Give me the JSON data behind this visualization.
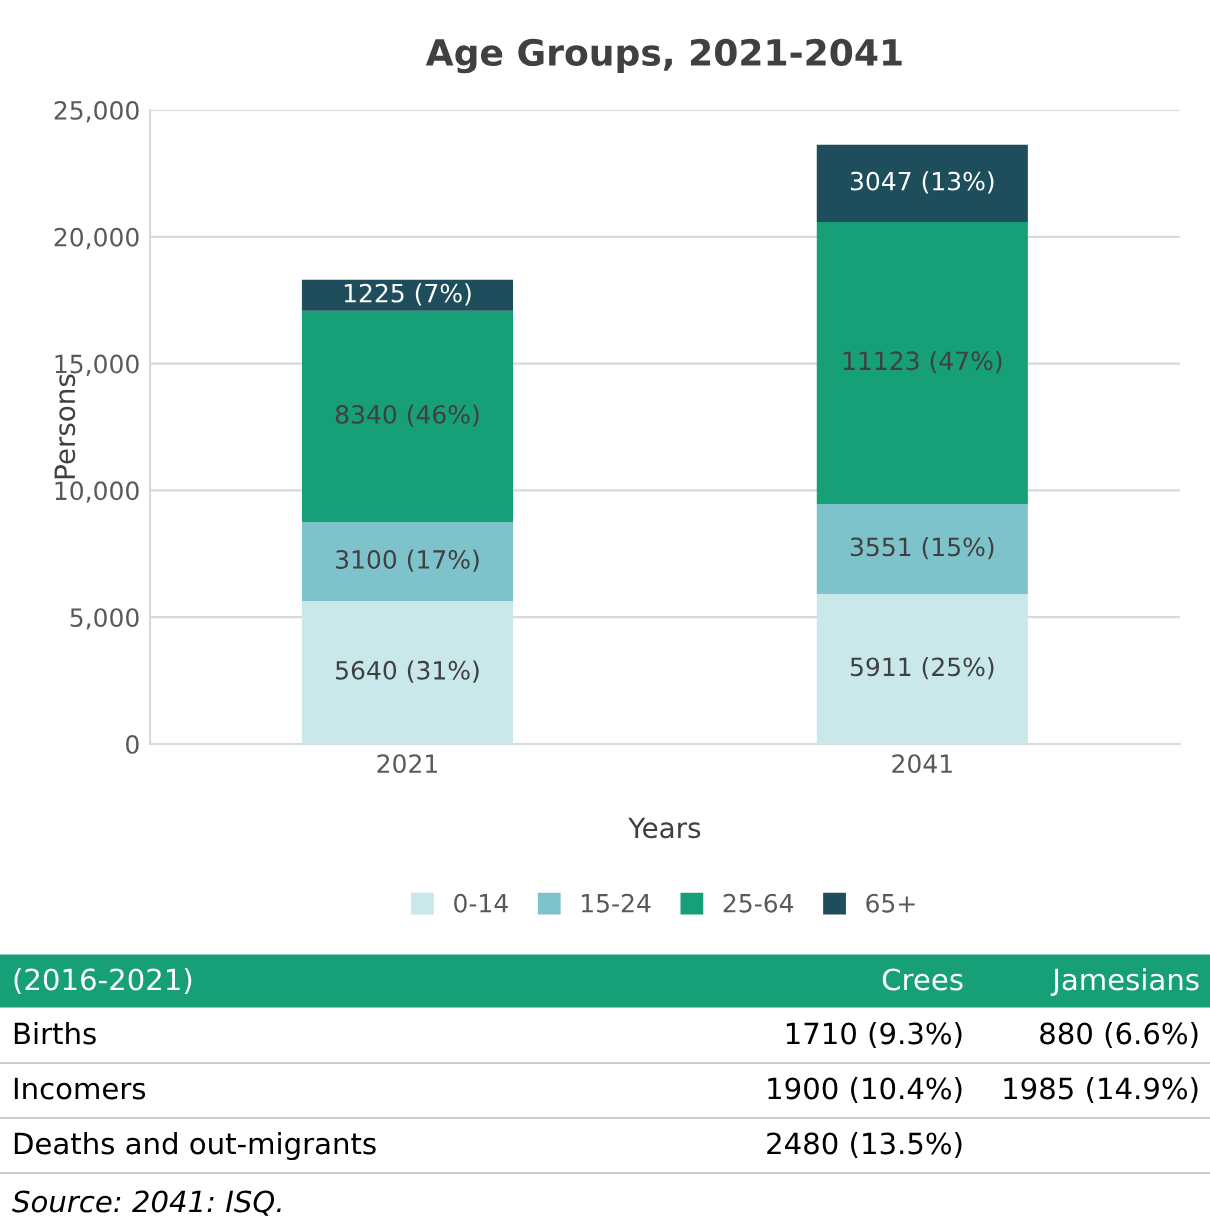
{
  "chart_data": [
    {
      "type": "bar",
      "title": "Age Groups, 2021-2041",
      "xlabel": "Years",
      "ylabel": "Persons",
      "categories": [
        "2021",
        "2041"
      ],
      "stacked": true,
      "ylim": [
        0,
        25000
      ],
      "yticks": [
        {
          "value": 0,
          "label": "0"
        },
        {
          "value": 5000,
          "label": "5,000"
        },
        {
          "value": 10000,
          "label": "10,000"
        },
        {
          "value": 15000,
          "label": "15,000"
        },
        {
          "value": 20000,
          "label": "20,000"
        },
        {
          "value": 25000,
          "label": "25,000"
        }
      ],
      "grid": "y",
      "legend": "bottom",
      "series": [
        {
          "name": "0-14",
          "color": "#c8e8ea",
          "values": [
            5640,
            5911
          ],
          "value_labels": [
            "5640 (31%)",
            "5911 (25%)"
          ]
        },
        {
          "name": "15-24",
          "color": "#7ec3cc",
          "values": [
            3100,
            3551
          ],
          "value_labels": [
            "3100 (17%)",
            "3551 (15%)"
          ]
        },
        {
          "name": "25-64",
          "color": "#17a077",
          "values": [
            8340,
            11123
          ],
          "value_labels": [
            "8340 (46%)",
            "11123 (47%)"
          ]
        },
        {
          "name": "65+",
          "color": "#1e4e5b",
          "values": [
            1225,
            3047
          ],
          "value_labels": [
            "1225 (7%)",
            "3047 (13%)"
          ]
        }
      ]
    },
    {
      "type": "other",
      "title": "(2016-2021)",
      "categories": [
        "Crees",
        "Jamesians"
      ],
      "y_categories": [
        "Births",
        "Incomers",
        "Deaths and out-migrants"
      ],
      "cell_labels": [
        [
          "1710 (9.3%)",
          "880 (6.6%)"
        ],
        [
          "1900 (10.4%)",
          "1985 (14.9%)"
        ],
        [
          "2480 (13.5%)",
          null
        ]
      ],
      "color": "#17a077",
      "annotations": [
        "Source: 2041: ISQ."
      ]
    }
  ]
}
